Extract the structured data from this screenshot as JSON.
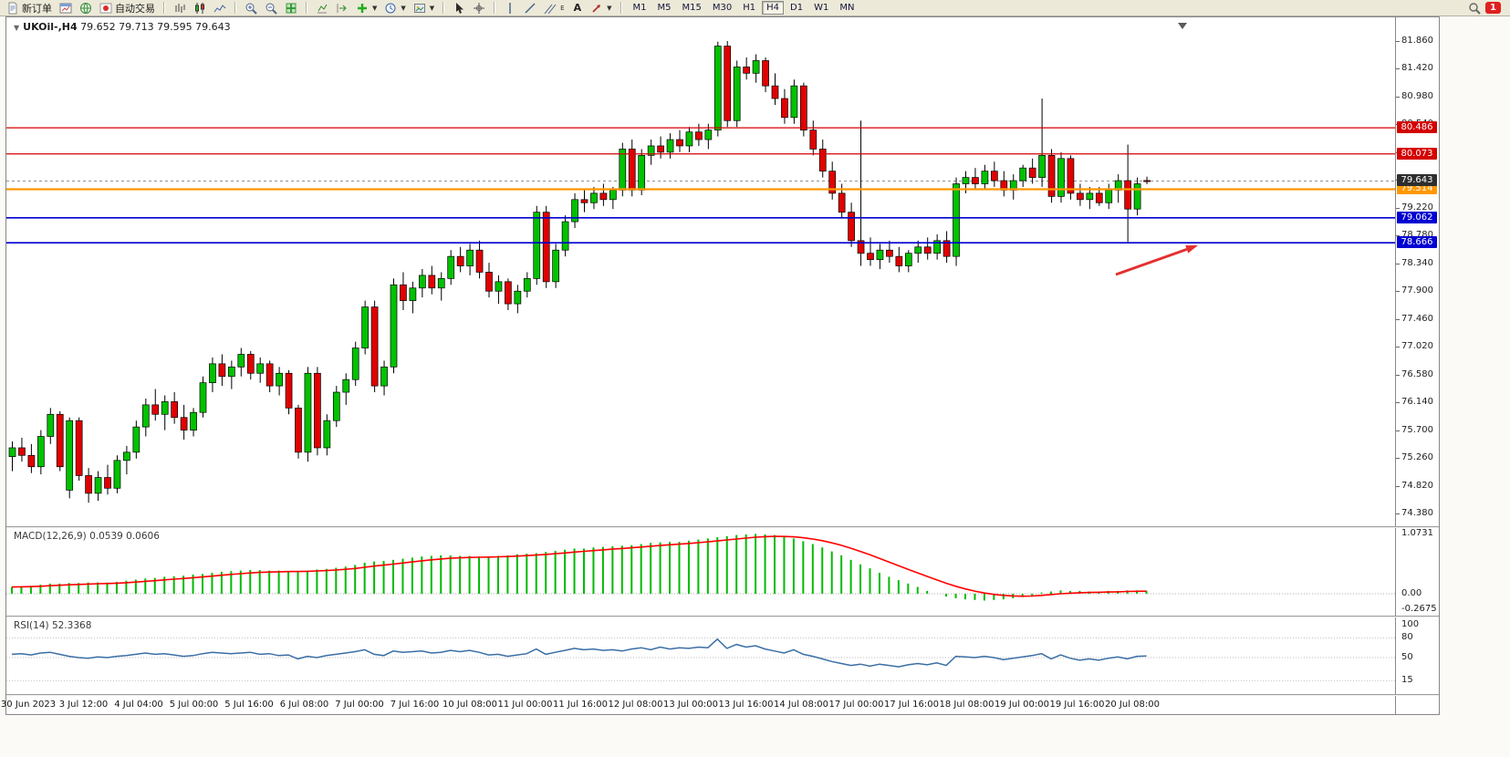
{
  "toolbar": {
    "new_order_label": "新订单",
    "auto_trading_label": "自动交易",
    "text_tool_label": "A",
    "channel_tool_letter": "E",
    "timeframes": [
      "M1",
      "M5",
      "M15",
      "M30",
      "H1",
      "H4",
      "D1",
      "W1",
      "MN"
    ],
    "active_timeframe": "H4",
    "notification_count": "1"
  },
  "chart_header": {
    "symbol_timeframe": "UKOil-,H4",
    "ohlc": "79.652 79.713 79.595 79.643"
  },
  "macd_panel": {
    "label": "MACD(12,26,9) 0.0539 0.0606"
  },
  "rsi_panel": {
    "label": "RSI(14) 52.3368"
  },
  "chart_data": {
    "type": "candlestick",
    "symbol": "UKOil-",
    "timeframe": "H4",
    "ohlc_display": {
      "open": "79.652",
      "high": "79.713",
      "low": "79.595",
      "close": "79.643"
    },
    "colors": {
      "up": "#00c200",
      "down": "#e10000",
      "wick": "#000000",
      "level_red": "#d40000",
      "level_orange": "#ff9800",
      "level_blue": "#0000d2",
      "price_badge": "#2e2e2e",
      "macd_hist": "#00bb00",
      "macd_signal": "#ff0000",
      "rsi_line": "#3a6ea5",
      "arrow": "#e53030"
    },
    "y_axis": {
      "min": 74.38,
      "max": 81.86,
      "ticks": [
        "81.860",
        "81.420",
        "80.980",
        "80.540",
        "80.100",
        "79.660",
        "79.220",
        "78.780",
        "78.340",
        "77.900",
        "77.460",
        "77.020",
        "76.580",
        "76.140",
        "75.700",
        "75.260",
        "74.820",
        "74.380"
      ]
    },
    "x_labels": [
      "30 Jun 2023",
      "3 Jul 12:00",
      "4 Jul 04:00",
      "5 Jul 00:00",
      "5 Jul 16:00",
      "6 Jul 08:00",
      "7 Jul 00:00",
      "7 Jul 16:00",
      "10 Jul 08:00",
      "11 Jul 00:00",
      "11 Jul 16:00",
      "12 Jul 08:00",
      "13 Jul 00:00",
      "13 Jul 16:00",
      "14 Jul 08:00",
      "17 Jul 00:00",
      "17 Jul 16:00",
      "18 Jul 08:00",
      "19 Jul 00:00",
      "19 Jul 16:00",
      "20 Jul 08:00"
    ],
    "candles": [
      [
        75.28,
        75.52,
        75.05,
        75.42
      ],
      [
        75.42,
        75.58,
        75.2,
        75.3
      ],
      [
        75.3,
        75.48,
        75.02,
        75.12
      ],
      [
        75.12,
        75.7,
        75.0,
        75.6
      ],
      [
        75.6,
        76.05,
        75.48,
        75.95
      ],
      [
        75.95,
        76.0,
        75.05,
        75.12
      ],
      [
        74.75,
        75.9,
        74.62,
        75.85
      ],
      [
        75.85,
        75.9,
        74.9,
        74.98
      ],
      [
        74.98,
        75.1,
        74.55,
        74.7
      ],
      [
        74.7,
        75.05,
        74.58,
        74.95
      ],
      [
        74.95,
        75.15,
        74.68,
        74.78
      ],
      [
        74.78,
        75.3,
        74.7,
        75.22
      ],
      [
        75.22,
        75.45,
        75.0,
        75.35
      ],
      [
        75.35,
        75.85,
        75.25,
        75.75
      ],
      [
        75.75,
        76.2,
        75.6,
        76.1
      ],
      [
        76.1,
        76.35,
        75.85,
        75.95
      ],
      [
        75.95,
        76.25,
        75.7,
        76.15
      ],
      [
        76.15,
        76.3,
        75.8,
        75.9
      ],
      [
        75.9,
        76.1,
        75.55,
        75.7
      ],
      [
        75.7,
        76.05,
        75.6,
        75.98
      ],
      [
        75.98,
        76.55,
        75.9,
        76.45
      ],
      [
        76.45,
        76.85,
        76.3,
        76.75
      ],
      [
        76.75,
        76.9,
        76.4,
        76.55
      ],
      [
        76.55,
        76.8,
        76.35,
        76.7
      ],
      [
        76.7,
        77.0,
        76.55,
        76.9
      ],
      [
        76.9,
        76.95,
        76.5,
        76.6
      ],
      [
        76.6,
        76.85,
        76.45,
        76.75
      ],
      [
        76.75,
        76.8,
        76.3,
        76.4
      ],
      [
        76.4,
        76.7,
        76.25,
        76.6
      ],
      [
        76.6,
        76.65,
        75.95,
        76.05
      ],
      [
        76.05,
        76.1,
        75.25,
        75.35
      ],
      [
        75.35,
        76.7,
        75.2,
        76.6
      ],
      [
        76.6,
        76.7,
        75.3,
        75.42
      ],
      [
        75.42,
        75.95,
        75.3,
        75.85
      ],
      [
        75.85,
        76.4,
        75.75,
        76.3
      ],
      [
        76.3,
        76.6,
        76.1,
        76.5
      ],
      [
        76.5,
        77.1,
        76.4,
        77.0
      ],
      [
        77.0,
        77.75,
        76.9,
        77.65
      ],
      [
        77.65,
        77.75,
        76.3,
        76.4
      ],
      [
        76.4,
        76.8,
        76.25,
        76.7
      ],
      [
        76.7,
        78.1,
        76.6,
        78.0
      ],
      [
        78.0,
        78.2,
        77.6,
        77.75
      ],
      [
        77.75,
        78.05,
        77.55,
        77.95
      ],
      [
        77.95,
        78.25,
        77.8,
        78.15
      ],
      [
        78.15,
        78.3,
        77.85,
        77.95
      ],
      [
        77.95,
        78.2,
        77.75,
        78.1
      ],
      [
        78.1,
        78.55,
        78.0,
        78.45
      ],
      [
        78.45,
        78.6,
        78.2,
        78.3
      ],
      [
        78.3,
        78.65,
        78.15,
        78.55
      ],
      [
        78.55,
        78.7,
        78.1,
        78.2
      ],
      [
        78.2,
        78.35,
        77.8,
        77.9
      ],
      [
        77.9,
        78.15,
        77.7,
        78.05
      ],
      [
        78.05,
        78.1,
        77.6,
        77.7
      ],
      [
        77.7,
        78.0,
        77.55,
        77.9
      ],
      [
        77.9,
        78.2,
        77.8,
        78.1
      ],
      [
        78.1,
        79.25,
        78.0,
        79.15
      ],
      [
        79.15,
        79.25,
        77.95,
        78.05
      ],
      [
        78.05,
        78.65,
        77.95,
        78.55
      ],
      [
        78.55,
        79.1,
        78.45,
        79.0
      ],
      [
        79.0,
        79.45,
        78.9,
        79.35
      ],
      [
        79.35,
        79.5,
        79.15,
        79.3
      ],
      [
        79.3,
        79.55,
        79.2,
        79.45
      ],
      [
        79.45,
        79.6,
        79.25,
        79.35
      ],
      [
        79.35,
        79.55,
        79.2,
        79.5
      ],
      [
        79.5,
        80.25,
        79.4,
        80.15
      ],
      [
        80.15,
        80.3,
        79.4,
        79.5
      ],
      [
        79.5,
        80.15,
        79.42,
        80.05
      ],
      [
        80.05,
        80.3,
        79.9,
        80.2
      ],
      [
        80.2,
        80.35,
        80.0,
        80.1
      ],
      [
        80.1,
        80.4,
        80.0,
        80.3
      ],
      [
        80.3,
        80.45,
        80.1,
        80.2
      ],
      [
        80.2,
        80.5,
        80.1,
        80.42
      ],
      [
        80.42,
        80.55,
        80.2,
        80.3
      ],
      [
        80.3,
        80.55,
        80.15,
        80.45
      ],
      [
        80.45,
        81.85,
        80.35,
        81.78
      ],
      [
        81.78,
        81.86,
        80.5,
        80.6
      ],
      [
        80.6,
        81.55,
        80.5,
        81.45
      ],
      [
        81.45,
        81.6,
        81.25,
        81.35
      ],
      [
        81.35,
        81.65,
        81.2,
        81.55
      ],
      [
        81.55,
        81.6,
        81.05,
        81.15
      ],
      [
        81.15,
        81.35,
        80.85,
        80.95
      ],
      [
        80.95,
        81.1,
        80.55,
        80.65
      ],
      [
        80.65,
        81.25,
        80.55,
        81.15
      ],
      [
        81.15,
        81.2,
        80.35,
        80.45
      ],
      [
        80.45,
        80.6,
        80.05,
        80.15
      ],
      [
        80.15,
        80.3,
        79.7,
        79.8
      ],
      [
        79.8,
        79.95,
        79.35,
        79.45
      ],
      [
        79.45,
        79.6,
        79.05,
        79.15
      ],
      [
        79.15,
        79.3,
        78.6,
        78.7
      ],
      [
        78.7,
        80.6,
        78.3,
        78.5
      ],
      [
        78.5,
        78.75,
        78.3,
        78.4
      ],
      [
        78.4,
        78.65,
        78.25,
        78.55
      ],
      [
        78.55,
        78.7,
        78.35,
        78.45
      ],
      [
        78.45,
        78.6,
        78.2,
        78.3
      ],
      [
        78.3,
        78.55,
        78.2,
        78.5
      ],
      [
        78.5,
        78.7,
        78.35,
        78.6
      ],
      [
        78.6,
        78.75,
        78.4,
        78.5
      ],
      [
        78.5,
        78.8,
        78.4,
        78.7
      ],
      [
        78.7,
        78.85,
        78.35,
        78.45
      ],
      [
        78.45,
        79.7,
        78.3,
        79.6
      ],
      [
        79.6,
        79.8,
        79.45,
        79.7
      ],
      [
        79.7,
        79.85,
        79.5,
        79.6
      ],
      [
        79.6,
        79.9,
        79.5,
        79.8
      ],
      [
        79.8,
        79.95,
        79.55,
        79.65
      ],
      [
        79.65,
        79.8,
        79.4,
        79.5
      ],
      [
        79.5,
        79.75,
        79.35,
        79.65
      ],
      [
        79.65,
        79.9,
        79.55,
        79.85
      ],
      [
        79.85,
        80.0,
        79.6,
        79.7
      ],
      [
        79.7,
        80.95,
        79.55,
        80.05
      ],
      [
        80.05,
        80.15,
        79.3,
        79.4
      ],
      [
        79.4,
        80.1,
        79.3,
        80.0
      ],
      [
        80.0,
        80.05,
        79.35,
        79.45
      ],
      [
        79.45,
        79.6,
        79.25,
        79.35
      ],
      [
        79.35,
        79.55,
        79.2,
        79.45
      ],
      [
        79.45,
        79.55,
        79.25,
        79.3
      ],
      [
        79.3,
        79.6,
        79.2,
        79.5
      ],
      [
        79.5,
        79.75,
        79.3,
        79.65
      ],
      [
        79.65,
        80.22,
        78.68,
        79.2
      ],
      [
        79.2,
        79.7,
        79.1,
        79.6
      ],
      [
        79.652,
        79.713,
        79.595,
        79.643
      ]
    ],
    "levels": [
      {
        "price": 80.486,
        "label": "80.486",
        "color": "#d40000",
        "width": 1.3
      },
      {
        "price": 80.073,
        "label": "80.073",
        "color": "#d40000",
        "width": 1.3
      },
      {
        "price": 79.514,
        "label": "79.514",
        "color": "#ff9800",
        "width": 2.2
      },
      {
        "price": 79.062,
        "label": "79.062",
        "color": "#0000d2",
        "width": 1.6
      },
      {
        "price": 78.666,
        "label": "78.666",
        "color": "#0000d2",
        "width": 1.6
      }
    ],
    "current_price": {
      "value": 79.643,
      "label": "79.643"
    },
    "macd": {
      "name": "MACD(12,26,9)",
      "values_display": "0.0539 0.0606",
      "histogram": [
        0.12,
        0.13,
        0.14,
        0.16,
        0.18,
        0.18,
        0.19,
        0.19,
        0.2,
        0.2,
        0.2,
        0.21,
        0.23,
        0.25,
        0.27,
        0.28,
        0.3,
        0.31,
        0.32,
        0.34,
        0.35,
        0.37,
        0.39,
        0.4,
        0.41,
        0.42,
        0.42,
        0.41,
        0.41,
        0.4,
        0.4,
        0.41,
        0.43,
        0.44,
        0.46,
        0.48,
        0.51,
        0.55,
        0.57,
        0.58,
        0.6,
        0.62,
        0.64,
        0.66,
        0.67,
        0.68,
        0.68,
        0.67,
        0.67,
        0.66,
        0.66,
        0.67,
        0.68,
        0.7,
        0.71,
        0.72,
        0.74,
        0.76,
        0.78,
        0.8,
        0.8,
        0.82,
        0.83,
        0.84,
        0.85,
        0.86,
        0.88,
        0.9,
        0.91,
        0.92,
        0.92,
        0.94,
        0.96,
        0.98,
        1.0,
        1.02,
        1.04,
        1.05,
        1.06,
        1.05,
        1.04,
        1.01,
        0.98,
        0.93,
        0.88,
        0.82,
        0.75,
        0.68,
        0.6,
        0.52,
        0.45,
        0.37,
        0.3,
        0.24,
        0.18,
        0.12,
        0.05,
        0.0,
        -0.05,
        -0.08,
        -0.1,
        -0.11,
        -0.12,
        -0.11,
        -0.1,
        -0.08,
        -0.06,
        -0.03,
        0.02,
        0.04,
        0.06,
        0.05,
        0.05,
        0.04,
        0.04,
        0.05,
        0.05,
        0.06,
        0.06,
        0.0539
      ],
      "scale": [
        {
          "v": 1.0731,
          "label": "1.0731"
        },
        {
          "v": 0,
          "label": "0.00"
        },
        {
          "v": -0.2675,
          "label": "-0.2675"
        }
      ],
      "signal_period": 9
    },
    "rsi": {
      "name": "RSI(14)",
      "value_display": "52.3368",
      "series": [
        55,
        56,
        54,
        57,
        58,
        55,
        52,
        50,
        49,
        51,
        50,
        52,
        53,
        55,
        57,
        55,
        56,
        54,
        52,
        53,
        56,
        58,
        57,
        56,
        57,
        58,
        55,
        56,
        53,
        54,
        48,
        52,
        50,
        53,
        55,
        57,
        59,
        62,
        55,
        53,
        60,
        58,
        59,
        60,
        57,
        58,
        61,
        59,
        61,
        58,
        54,
        55,
        52,
        54,
        56,
        63,
        55,
        58,
        61,
        64,
        62,
        63,
        61,
        62,
        60,
        63,
        65,
        62,
        66,
        63,
        65,
        64,
        66,
        65,
        78,
        64,
        70,
        66,
        68,
        63,
        60,
        57,
        62,
        55,
        52,
        48,
        44,
        41,
        38,
        40,
        37,
        40,
        38,
        36,
        39,
        41,
        39,
        42,
        38,
        52,
        51,
        50,
        52,
        50,
        47,
        49,
        51,
        53,
        56,
        48,
        54,
        49,
        46,
        48,
        46,
        49,
        51,
        48,
        52,
        52.3
      ],
      "scale": [
        {
          "v": 100,
          "label": "100"
        },
        {
          "v": 80,
          "label": "80"
        },
        {
          "v": 50,
          "label": "50"
        },
        {
          "v": 15,
          "label": "15"
        }
      ],
      "levels": [
        80,
        50,
        15
      ]
    },
    "annotation_arrow": {
      "from": [
        1216,
        282
      ],
      "to": [
        1306,
        250
      ]
    }
  }
}
